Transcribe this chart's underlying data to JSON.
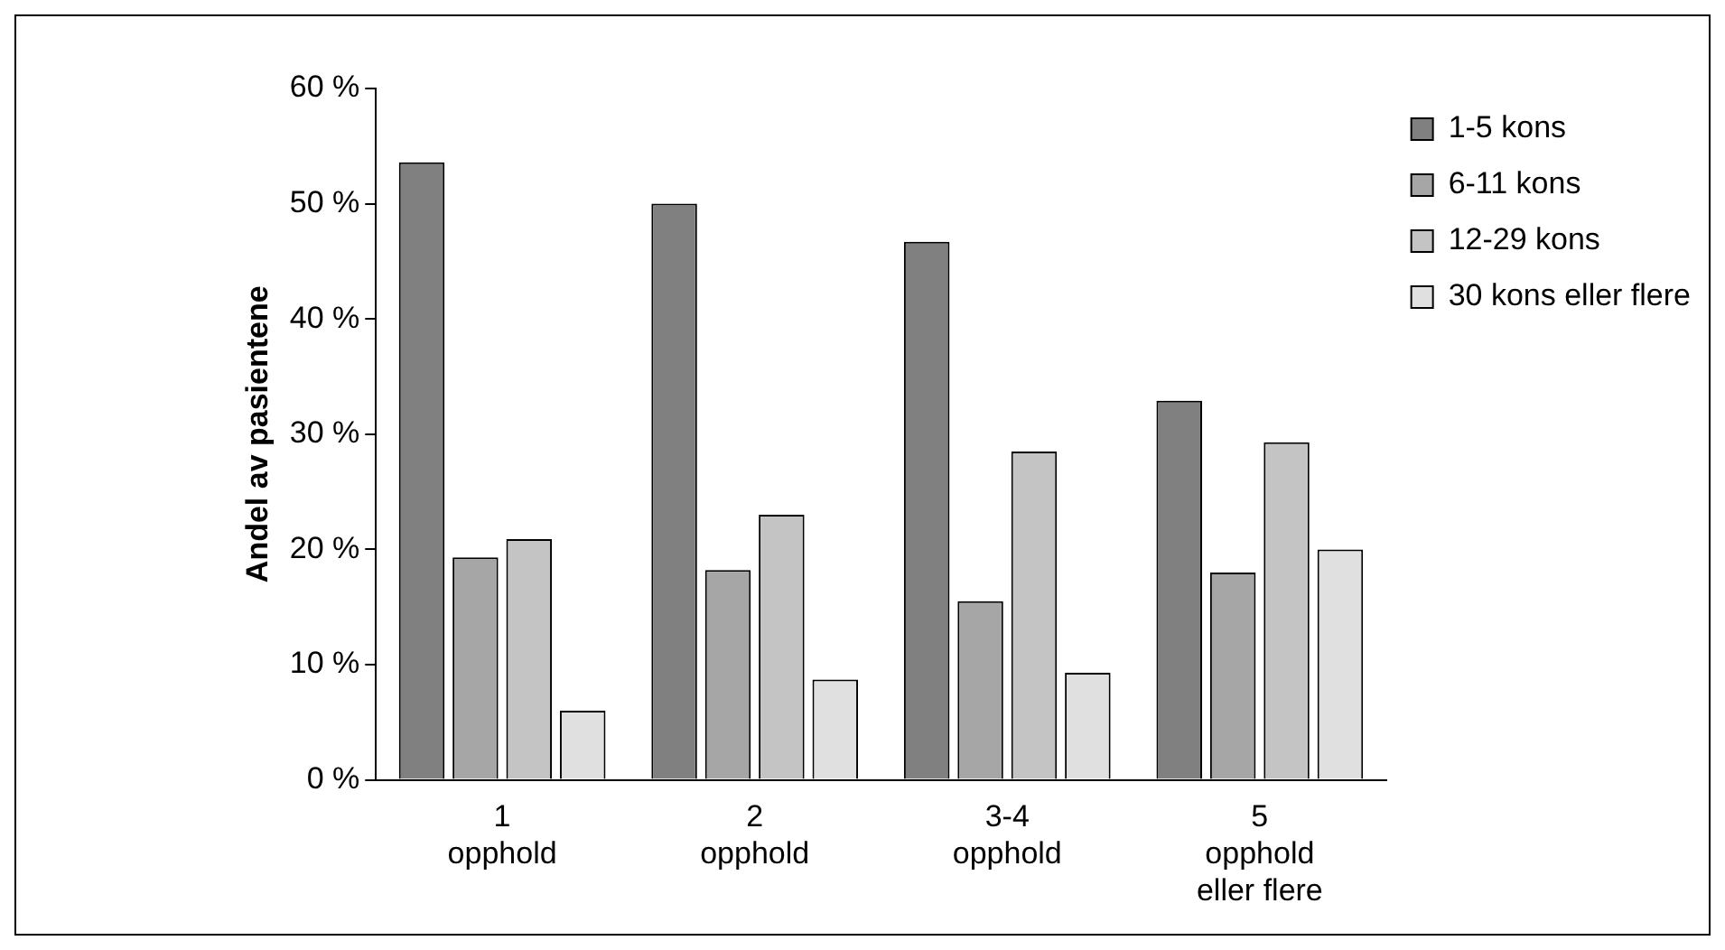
{
  "chart_data": {
    "type": "bar",
    "ylabel": "Andel av pasientene",
    "categories": [
      "1\nopphold",
      "2\nopphold",
      "3-4\nopphold",
      "5\nopphold\neller flere"
    ],
    "series": [
      {
        "name": "1-5 kons",
        "color": "#808080",
        "values": [
          53.6,
          50.0,
          46.7,
          32.9
        ]
      },
      {
        "name": "6-11 kons",
        "color": "#a6a6a6",
        "values": [
          19.3,
          18.2,
          15.5,
          18.0
        ]
      },
      {
        "name": "12-29 kons",
        "color": "#c4c4c4",
        "values": [
          20.9,
          23.0,
          28.5,
          29.3
        ]
      },
      {
        "name": "30 kons eller flere",
        "color": "#e0e0e0",
        "values": [
          6.0,
          8.7,
          9.3,
          20.0
        ]
      }
    ],
    "ylim": [
      0,
      60
    ],
    "yticks": [
      {
        "value": 0,
        "label": "0 %"
      },
      {
        "value": 10,
        "label": "10 %"
      },
      {
        "value": 20,
        "label": "20 %"
      },
      {
        "value": 30,
        "label": "30 %"
      },
      {
        "value": 40,
        "label": "40 %"
      },
      {
        "value": 50,
        "label": "50 %"
      },
      {
        "value": 60,
        "label": "60 %"
      }
    ],
    "grid": false,
    "legend": "top right"
  }
}
